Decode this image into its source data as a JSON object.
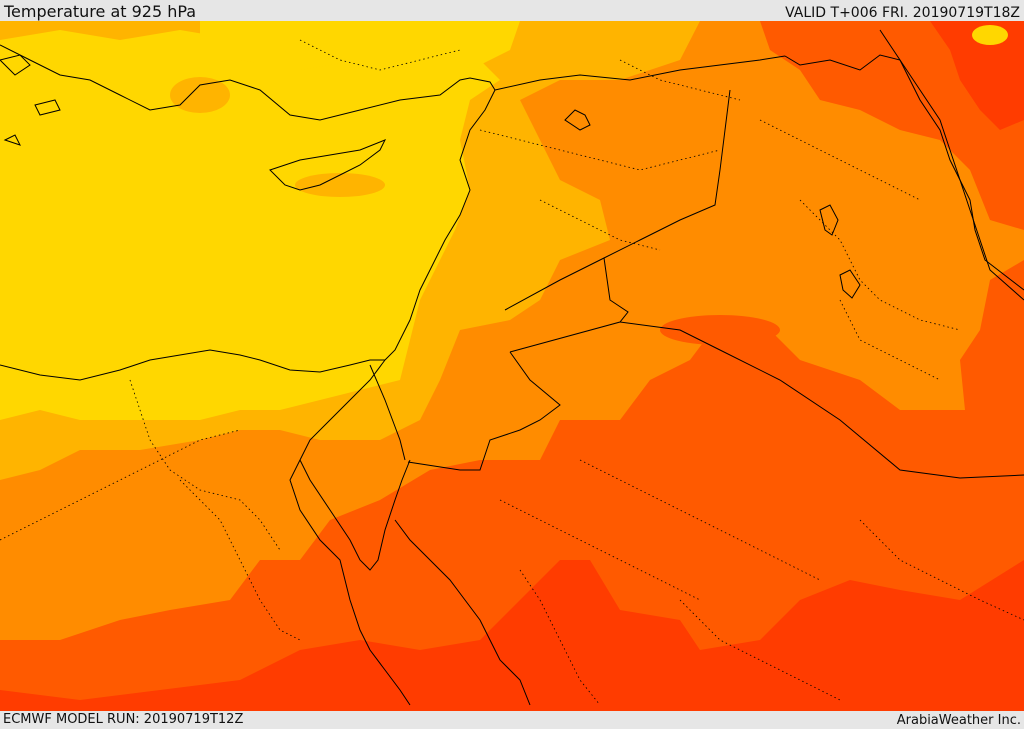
{
  "header": {
    "title": "Temperature at 925 hPa",
    "valid": "VALID T+006 FRI. 20190719T18Z"
  },
  "footer": {
    "model_run": "ECMWF MODEL RUN: 20190719T12Z",
    "credit": "ArabiaWeather Inc."
  },
  "colors": {
    "band_yellow": "#ffd700",
    "band_amber": "#ffb400",
    "band_orange": "#ff8c00",
    "band_dark_orange": "#ff5a00",
    "band_red_orange": "#ff3c00",
    "boundary_line": "#000000",
    "frame_bg": "#e6e6e6"
  }
}
